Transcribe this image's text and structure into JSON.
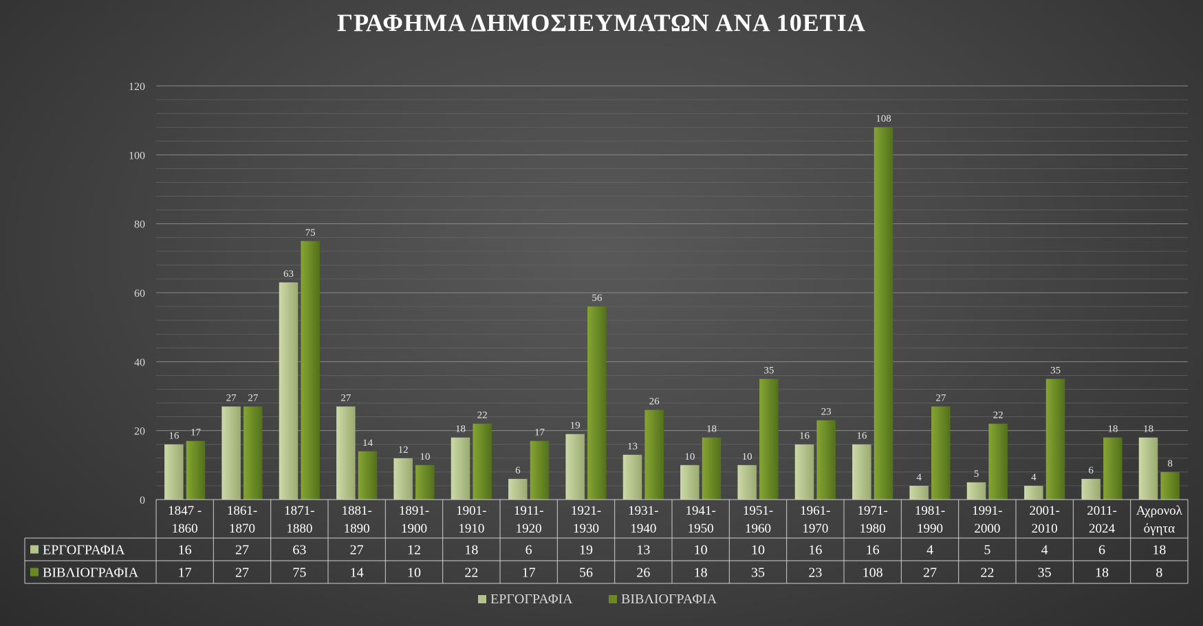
{
  "chart_data": {
    "type": "bar",
    "title": "ΓΡΑΦΗΜΑ ΔΗΜΟΣΙΕΥΜΑΤΩΝ ΑΝΑ 10ΕΤΙΑ",
    "categories": [
      [
        "1847 -",
        "1860"
      ],
      [
        "1861-",
        "1870"
      ],
      [
        "1871-",
        "1880"
      ],
      [
        "1881-",
        "1890"
      ],
      [
        "1891-",
        "1900"
      ],
      [
        "1901-",
        "1910"
      ],
      [
        "1911-",
        "1920"
      ],
      [
        "1921-",
        "1930"
      ],
      [
        "1931-",
        "1940"
      ],
      [
        "1941-",
        "1950"
      ],
      [
        "1951-",
        "1960"
      ],
      [
        "1961-",
        "1970"
      ],
      [
        "1971-",
        "1980"
      ],
      [
        "1981-",
        "1990"
      ],
      [
        "1991-",
        "2000"
      ],
      [
        "2001-",
        "2010"
      ],
      [
        "2011-",
        "2024"
      ],
      [
        "Αχρονολ",
        "όγητα"
      ]
    ],
    "series": [
      {
        "name": "ΕΡΓΟΓΡΑΦΙΑ",
        "color": "#b5c48f",
        "values": [
          16,
          27,
          63,
          27,
          12,
          18,
          6,
          19,
          13,
          10,
          10,
          16,
          16,
          4,
          5,
          4,
          6,
          18
        ]
      },
      {
        "name": "ΒΙΒΛΙΟΓΡΑΦΙΑ",
        "color": "#6b8a22",
        "values": [
          17,
          27,
          75,
          14,
          10,
          22,
          17,
          56,
          26,
          18,
          35,
          23,
          108,
          27,
          22,
          35,
          18,
          8
        ]
      }
    ],
    "ylim": [
      0,
      120
    ],
    "yticks": [
      0,
      20,
      40,
      60,
      80,
      100,
      120
    ],
    "grid": true,
    "data_table": true,
    "legend_position": "bottom"
  }
}
